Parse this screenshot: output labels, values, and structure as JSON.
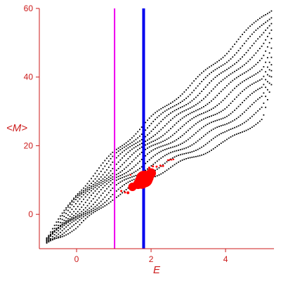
{
  "chart_data": {
    "type": "scatter",
    "xlabel": "E",
    "ylabel": "<M>",
    "xlim": [
      -1.0,
      5.3
    ],
    "ylim": [
      -10,
      60
    ],
    "x_ticks": [
      0,
      2,
      4
    ],
    "y_ticks": [
      0,
      20,
      40,
      60
    ],
    "x_tick_labels": [
      "0",
      "2",
      "4"
    ],
    "y_tick_labels": [
      "0",
      "20",
      "40",
      "60"
    ],
    "grid": false,
    "legend": "none",
    "colors": {
      "axes": "#cc1a1a",
      "points": "#000000",
      "highlight": "#ff0000",
      "vline_1": "#ee00ee",
      "vline_2": "#0000ee"
    },
    "vlines": [
      {
        "x": 1.02,
        "color": "#ee00ee"
      },
      {
        "x": 1.8,
        "color": "#0000ee"
      }
    ],
    "series": [
      {
        "values": "black dotted point cloud, lower-left to upper-right",
        "band": [
          {
            "x": -0.8,
            "ymin": -8,
            "ymax": -7
          },
          {
            "x": 0.0,
            "ymin": -4,
            "ymax": 6
          },
          {
            "x": 1.0,
            "ymin": 5,
            "ymax": 18
          },
          {
            "x": 2.0,
            "ymin": 11,
            "ymax": 28
          },
          {
            "x": 3.0,
            "ymin": 16,
            "ymax": 37
          },
          {
            "x": 4.0,
            "ymin": 21,
            "ymax": 47
          },
          {
            "x": 5.0,
            "ymin": 28,
            "ymax": 58
          },
          {
            "x": 5.25,
            "ymin": 38,
            "ymax": 60
          }
        ]
      },
      {
        "points": [
          {
            "x": 1.5,
            "y": 8,
            "size": 6
          },
          {
            "x": 1.65,
            "y": 8.8,
            "size": 7
          },
          {
            "x": 1.75,
            "y": 9.5,
            "size": 10
          },
          {
            "x": 1.82,
            "y": 10.3,
            "size": 12
          },
          {
            "x": 1.9,
            "y": 10.8,
            "size": 9
          },
          {
            "x": 2.0,
            "y": 12,
            "size": 7
          },
          {
            "x": 1.2,
            "y": 6.8,
            "size": 1.5
          },
          {
            "x": 1.3,
            "y": 6.4,
            "size": 1.5
          },
          {
            "x": 1.38,
            "y": 6.3,
            "size": 2
          },
          {
            "x": 1.95,
            "y": 13.6,
            "size": 1.5
          },
          {
            "x": 2.05,
            "y": 14,
            "size": 1.5
          },
          {
            "x": 2.15,
            "y": 13.9,
            "size": 1.5
          },
          {
            "x": 2.25,
            "y": 14.2,
            "size": 1.5
          },
          {
            "x": 2.32,
            "y": 14.1,
            "size": 1.5
          },
          {
            "x": 2.45,
            "y": 15.8,
            "size": 1.2
          },
          {
            "x": 2.5,
            "y": 15.9,
            "size": 1.2
          },
          {
            "x": 2.55,
            "y": 15.9,
            "size": 1.2
          },
          {
            "x": 2.6,
            "y": 16.0,
            "size": 1.2
          },
          {
            "x": 1.45,
            "y": 11.5,
            "size": 1.2
          }
        ]
      }
    ]
  }
}
